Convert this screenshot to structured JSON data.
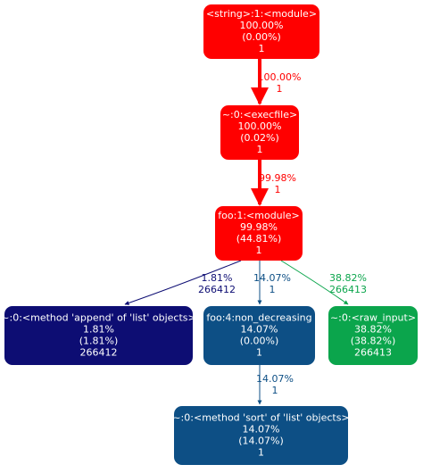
{
  "nodes": [
    {
      "lines": [
        "<string>:1:<module>",
        "100.00%",
        "(0.00%)",
        "1"
      ]
    },
    {
      "lines": [
        "~:0:<execfile>",
        "100.00%",
        "(0.02%)",
        "1"
      ]
    },
    {
      "lines": [
        "foo:1:<module>",
        "99.98%",
        "(44.81%)",
        "1"
      ]
    },
    {
      "lines": [
        "~:0:<method 'append' of 'list' objects>",
        "1.81%",
        "(1.81%)",
        "266412"
      ]
    },
    {
      "lines": [
        "foo:4:non_decreasing",
        "14.07%",
        "(0.00%)",
        "1"
      ]
    },
    {
      "lines": [
        "~:0:<raw_input>",
        "38.82%",
        "(38.82%)",
        "266413"
      ]
    },
    {
      "lines": [
        "~:0:<method 'sort' of 'list' objects>",
        "14.07%",
        "(14.07%)",
        "1"
      ]
    }
  ],
  "edges": [
    {
      "labels": [
        "100.00%",
        "1"
      ]
    },
    {
      "labels": [
        "99.98%",
        "1"
      ]
    },
    {
      "labels": [
        "1.81%",
        "266412"
      ]
    },
    {
      "labels": [
        "14.07%",
        "1"
      ]
    },
    {
      "labels": [
        "38.82%",
        "266413"
      ]
    },
    {
      "labels": [
        "14.07%",
        "1"
      ]
    }
  ]
}
